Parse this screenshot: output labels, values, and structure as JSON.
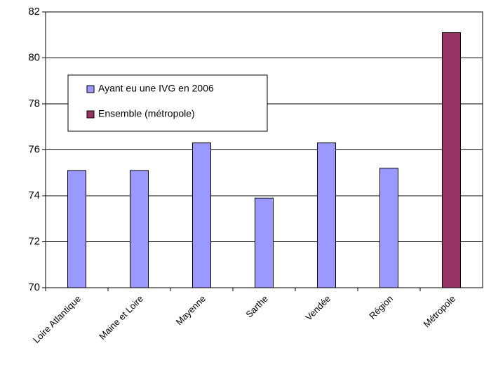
{
  "chart_data": {
    "type": "bar",
    "categories": [
      "Loire Atlantique",
      "Maine et Loire",
      "Mayenne",
      "Sarthe",
      "Vendée",
      "Région",
      "Métropole"
    ],
    "series": [
      {
        "name": "Ayant eu une IVG en 2006",
        "color": "#9999ff",
        "values": [
          75.1,
          75.1,
          76.3,
          73.9,
          76.3,
          75.2,
          null
        ]
      },
      {
        "name": "Ensemble (métropole)",
        "color": "#993366",
        "values": [
          null,
          null,
          null,
          null,
          null,
          null,
          81.1
        ]
      }
    ],
    "ylim": [
      70,
      82
    ],
    "yticks": [
      70,
      72,
      74,
      76,
      78,
      80,
      82
    ],
    "grid": true
  }
}
